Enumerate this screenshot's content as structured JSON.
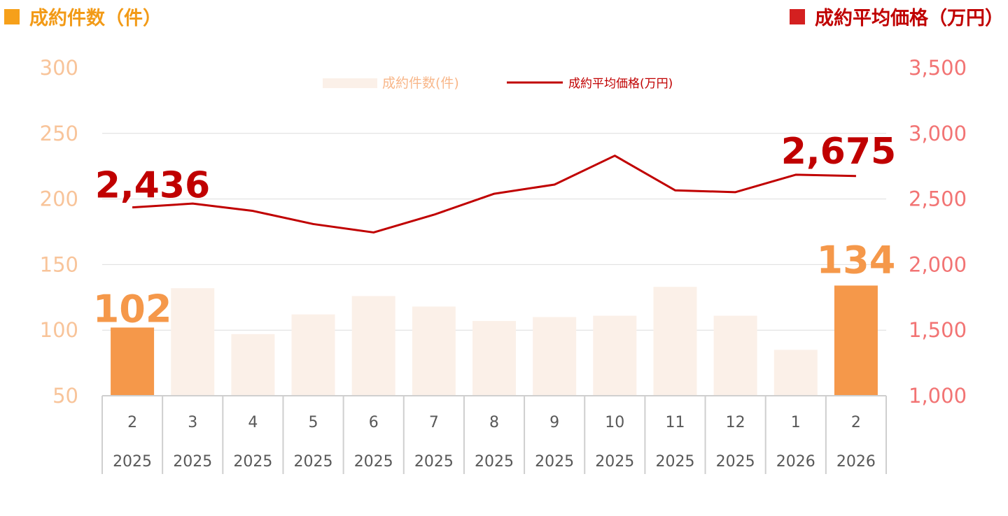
{
  "header": {
    "left_title": "成約件数（件）",
    "right_title": "成約平均価格（万円）"
  },
  "chart_data": {
    "type": "bar+line",
    "categories": [
      {
        "month": "2",
        "year": "2025"
      },
      {
        "month": "3",
        "year": "2025"
      },
      {
        "month": "4",
        "year": "2025"
      },
      {
        "month": "5",
        "year": "2025"
      },
      {
        "month": "6",
        "year": "2025"
      },
      {
        "month": "7",
        "year": "2025"
      },
      {
        "month": "8",
        "year": "2025"
      },
      {
        "month": "9",
        "year": "2025"
      },
      {
        "month": "10",
        "year": "2025"
      },
      {
        "month": "11",
        "year": "2025"
      },
      {
        "month": "12",
        "year": "2025"
      },
      {
        "month": "1",
        "year": "2026"
      },
      {
        "month": "2",
        "year": "2026"
      }
    ],
    "series": [
      {
        "name": "成約件数(件)",
        "type": "bar",
        "axis": "left",
        "values": [
          102,
          132,
          97,
          112,
          126,
          118,
          107,
          110,
          111,
          133,
          111,
          85,
          134
        ],
        "highlight_indices": [
          0,
          12
        ],
        "color": "#fbf0e8",
        "highlight_color": "#f5984a"
      },
      {
        "name": "成約平均価格(万円)",
        "type": "line",
        "axis": "right",
        "values": [
          2436,
          2465,
          2409,
          2309,
          2245,
          2380,
          2540,
          2610,
          2830,
          2566,
          2552,
          2685,
          2675
        ],
        "color": "#c00000"
      }
    ],
    "y_left": {
      "min": 50,
      "max": 300,
      "ticks": [
        "50",
        "100",
        "150",
        "200",
        "250",
        "300"
      ],
      "color": "#f8c49a"
    },
    "y_right": {
      "min": 1000,
      "max": 3500,
      "ticks": [
        "1,000",
        "1,500",
        "2,000",
        "2,500",
        "3,000",
        "3,500"
      ],
      "color": "#f27474"
    },
    "grid": true,
    "legend_position": "top-center",
    "annotations": [
      {
        "text": "102",
        "series": 0,
        "index": 0,
        "color": "#f5984a"
      },
      {
        "text": "134",
        "series": 0,
        "index": 12,
        "color": "#f5984a"
      },
      {
        "text": "2,436",
        "series": 1,
        "index": 0,
        "color": "#c00000"
      },
      {
        "text": "2,675",
        "series": 1,
        "index": 12,
        "color": "#c00000"
      }
    ]
  }
}
